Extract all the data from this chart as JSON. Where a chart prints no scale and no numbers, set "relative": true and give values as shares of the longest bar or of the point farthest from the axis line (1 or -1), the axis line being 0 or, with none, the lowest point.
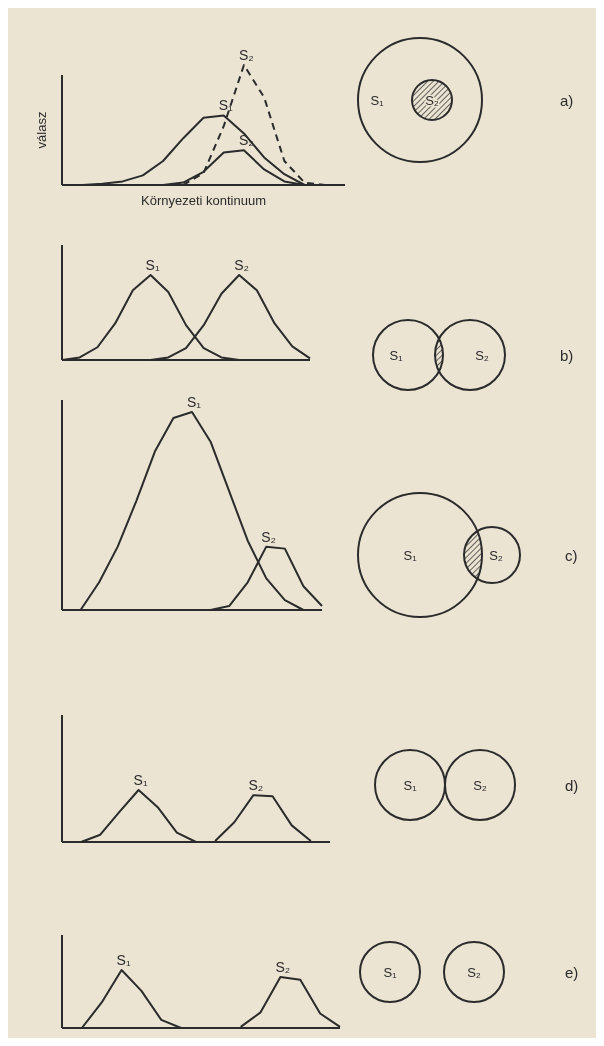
{
  "chart_data": [
    {
      "type": "line",
      "relative": true,
      "ylabel": "válasz",
      "xlabel": "Környezeti kontinuum",
      "annotations": [
        "a)"
      ],
      "categories": [
        null,
        null,
        null,
        null,
        null,
        null,
        null,
        null,
        null,
        null,
        null,
        null,
        null,
        null,
        null
      ],
      "series": [
        {
          "name": "S₁",
          "color": "#2b2b2b",
          "values": [
            0,
            0,
            0.01,
            0.03,
            0.08,
            0.2,
            0.39,
            0.56,
            0.58,
            0.43,
            0.23,
            0.09,
            0,
            0,
            0
          ]
        },
        {
          "name": "S₂",
          "color": "#2b2b2b",
          "line_style": "dashed",
          "values": [
            null,
            null,
            null,
            null,
            null,
            null,
            0,
            0.1,
            0.49,
            1,
            0.73,
            0.2,
            0.02,
            0,
            null
          ]
        },
        {
          "name": "S₂",
          "color": "#2b2b2b",
          "values": [
            null,
            null,
            null,
            null,
            null,
            0,
            0.02,
            0.11,
            0.27,
            0.29,
            0.13,
            0.03,
            0,
            null,
            null
          ]
        }
      ]
    },
    {
      "type": "line",
      "relative": true,
      "annotations": [
        "b)"
      ],
      "categories": [
        null,
        null,
        null,
        null,
        null,
        null,
        null,
        null,
        null,
        null,
        null,
        null,
        null,
        null,
        null
      ],
      "series": [
        {
          "name": "S₁",
          "color": "#2b2b2b",
          "values": [
            0,
            0.03,
            0.15,
            0.43,
            0.82,
            1,
            0.8,
            0.41,
            0.14,
            0.03,
            0,
            0,
            0,
            0,
            0
          ]
        },
        {
          "name": "S₂",
          "color": "#2b2b2b",
          "values": [
            null,
            null,
            null,
            null,
            null,
            0,
            0.03,
            0.14,
            0.41,
            0.78,
            1,
            0.82,
            0.43,
            0.16,
            0.02
          ]
        }
      ]
    },
    {
      "type": "line",
      "relative": true,
      "annotations": [
        "c)"
      ],
      "categories": [
        null,
        null,
        null,
        null,
        null,
        null,
        null,
        null,
        null,
        null,
        null,
        null,
        null,
        null,
        null
      ],
      "series": [
        {
          "name": "S₁",
          "color": "#2b2b2b",
          "values": [
            0,
            0,
            0.14,
            0.32,
            0.55,
            0.8,
            0.97,
            1,
            0.85,
            0.6,
            0.35,
            0.16,
            0.05,
            0,
            0
          ]
        },
        {
          "name": "S₂",
          "color": "#2b2b2b",
          "values": [
            null,
            null,
            null,
            null,
            null,
            null,
            null,
            null,
            0,
            0.02,
            0.14,
            0.32,
            0.31,
            0.12,
            0.02
          ]
        }
      ]
    },
    {
      "type": "line",
      "relative": true,
      "annotations": [
        "d)"
      ],
      "categories": [
        null,
        null,
        null,
        null,
        null,
        null,
        null,
        null,
        null,
        null,
        null,
        null,
        null,
        null,
        null
      ],
      "series": [
        {
          "name": "S₁",
          "color": "#2b2b2b",
          "values": [
            0,
            0,
            0.14,
            0.58,
            1,
            0.67,
            0.18,
            0,
            0,
            0,
            0,
            0,
            0,
            0,
            0
          ]
        },
        {
          "name": "S₂",
          "color": "#2b2b2b",
          "values": [
            null,
            null,
            null,
            null,
            null,
            null,
            null,
            null,
            0.02,
            0.38,
            0.9,
            0.88,
            0.32,
            0.02,
            null
          ]
        }
      ]
    },
    {
      "type": "line",
      "relative": true,
      "annotations": [
        "e)"
      ],
      "categories": [
        null,
        null,
        null,
        null,
        null,
        null,
        null,
        null,
        null,
        null,
        null,
        null,
        null,
        null,
        null
      ],
      "series": [
        {
          "name": "S₁",
          "color": "#2b2b2b",
          "values": [
            0,
            0,
            0.44,
            1,
            0.64,
            0.14,
            0,
            0,
            0,
            0,
            0,
            0,
            0,
            0,
            0
          ]
        },
        {
          "name": "S₂",
          "color": "#2b2b2b",
          "values": [
            null,
            null,
            null,
            null,
            null,
            null,
            null,
            null,
            null,
            0.02,
            0.27,
            0.88,
            0.83,
            0.25,
            0.02
          ]
        }
      ]
    }
  ]
}
